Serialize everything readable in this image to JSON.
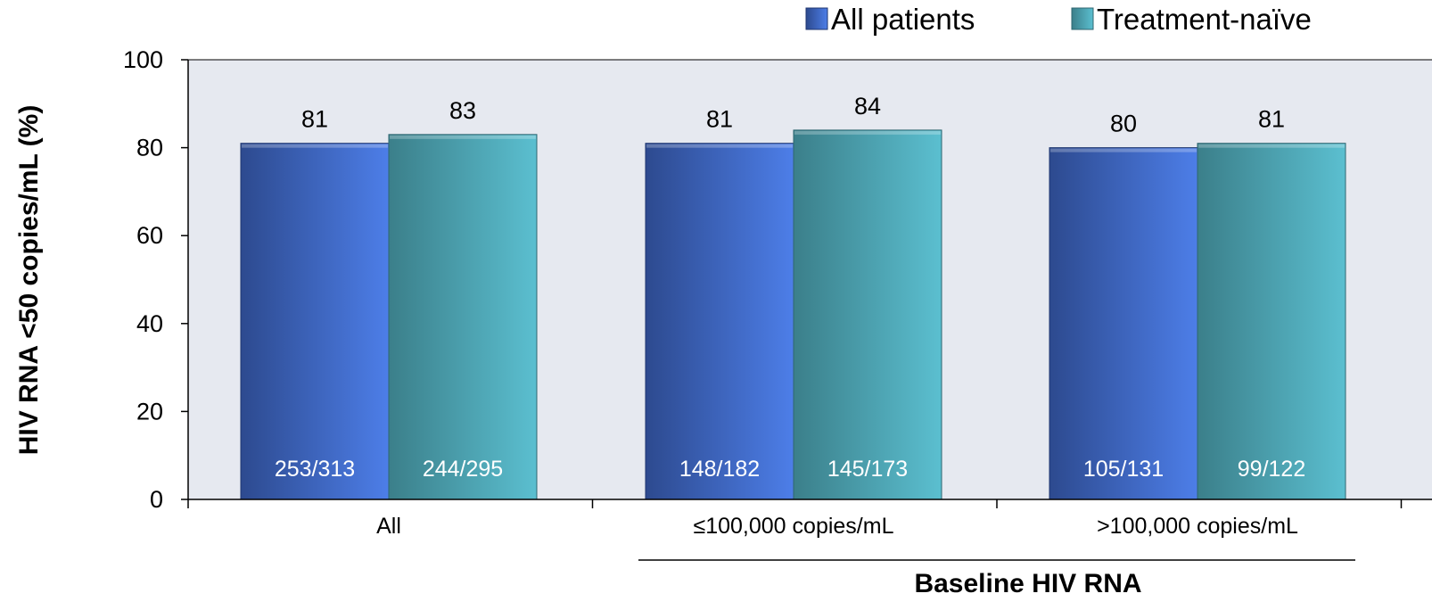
{
  "chart_data": {
    "type": "bar",
    "ylabel": "HIV RNA <50 copies/mL (%)",
    "group_label": "Baseline HIV RNA",
    "ylim": [
      0,
      100
    ],
    "yticks": [
      0,
      20,
      40,
      60,
      80,
      100
    ],
    "categories": [
      "All",
      "≤100,000 copies/mL",
      ">100,000 copies/mL"
    ],
    "legend_position": "top-right",
    "series": [
      {
        "name": "All patients",
        "values": [
          81,
          81,
          80
        ],
        "counts": [
          "253/313",
          "148/182",
          "105/131"
        ],
        "color_dark": "#2d4a8f",
        "color_light": "#4d7ee8"
      },
      {
        "name": "Treatment-naïve",
        "values": [
          83,
          84,
          81
        ],
        "counts": [
          "244/295",
          "145/173",
          "99/122"
        ],
        "color_dark": "#3b7f8a",
        "color_light": "#5bbfd0"
      }
    ],
    "plot_background": "#e6e9f0",
    "grid": false
  }
}
